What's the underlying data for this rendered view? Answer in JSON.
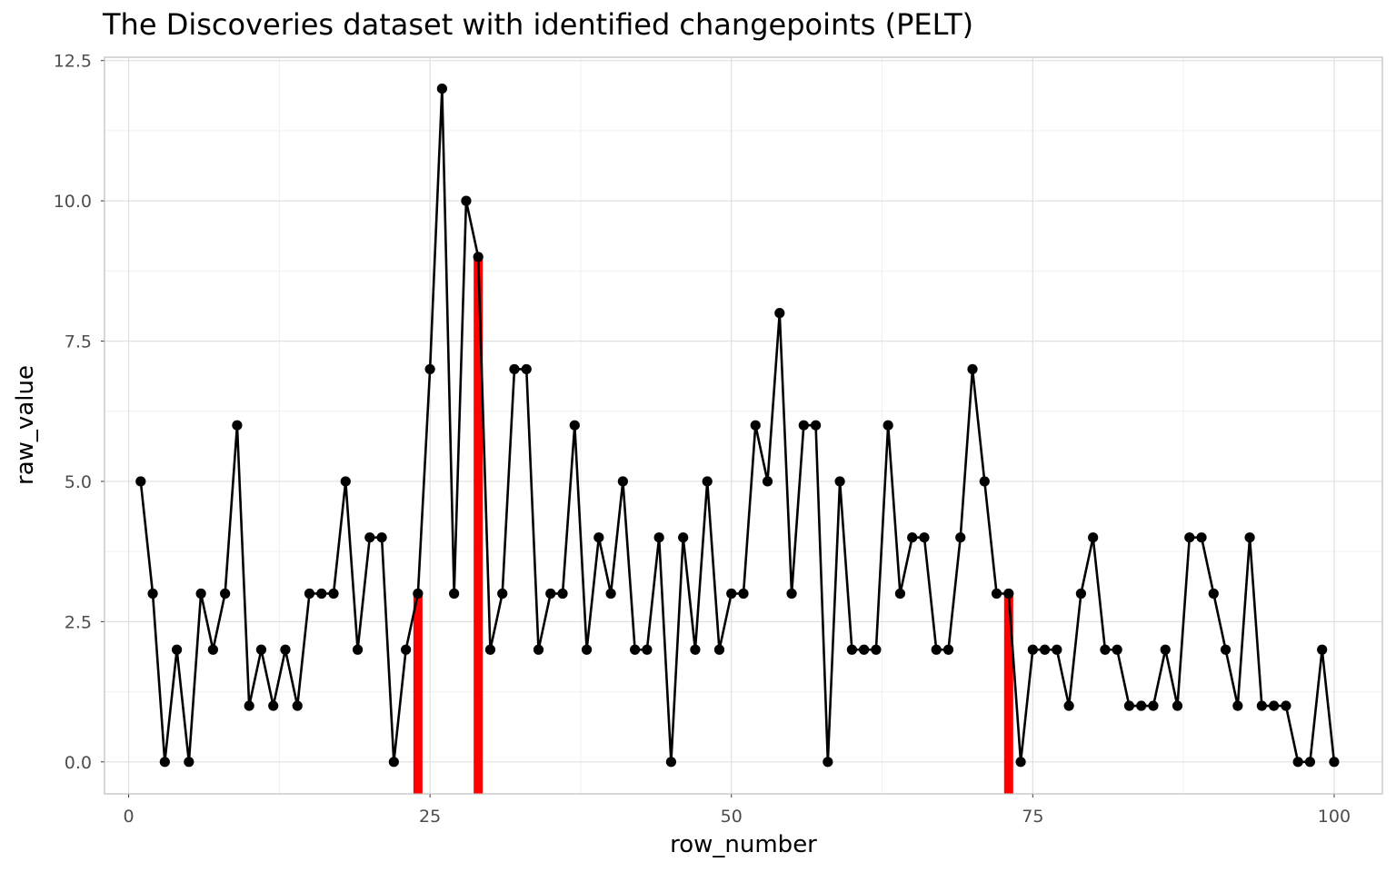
{
  "chart_data": {
    "type": "line",
    "title": "The Discoveries dataset with identified changepoints (PELT)",
    "xlabel": "row_number",
    "ylabel": "raw_value",
    "xlim": [
      -2,
      104
    ],
    "ylim": [
      -0.57,
      12.56
    ],
    "x_ticks": [
      0,
      25,
      50,
      75,
      100
    ],
    "x_tick_labels": [
      "0",
      "25",
      "50",
      "75",
      "100"
    ],
    "y_ticks": [
      0,
      2.5,
      5,
      7.5,
      10,
      12.5
    ],
    "y_tick_labels": [
      "0.0",
      "2.5",
      "5.0",
      "7.5",
      "10.0",
      "12.5"
    ],
    "grid": true,
    "series": [
      {
        "x": [
          1,
          2,
          3,
          4,
          5,
          6,
          7,
          8,
          9,
          10,
          11,
          12,
          13,
          14,
          15,
          16,
          17,
          18,
          19,
          20,
          21,
          22,
          23,
          24,
          25,
          26,
          27,
          28,
          29,
          30,
          31,
          32,
          33,
          34,
          35,
          36,
          37,
          38,
          39,
          40,
          41,
          42,
          43,
          44,
          45,
          46,
          47,
          48,
          49,
          50,
          51,
          52,
          53,
          54,
          55,
          56,
          57,
          58,
          59,
          60,
          61,
          62,
          63,
          64,
          65,
          66,
          67,
          68,
          69,
          70,
          71,
          72,
          73,
          74,
          75,
          76,
          77,
          78,
          79,
          80,
          81,
          82,
          83,
          84,
          85,
          86,
          87,
          88,
          89,
          90,
          91,
          92,
          93,
          94,
          95,
          96,
          97,
          98,
          99,
          100
        ],
        "values": [
          5,
          3,
          0,
          2,
          0,
          3,
          2,
          3,
          6,
          1,
          2,
          1,
          2,
          1,
          3,
          3,
          3,
          5,
          2,
          4,
          4,
          0,
          2,
          3,
          7,
          12,
          3,
          10,
          9,
          2,
          3,
          7,
          7,
          2,
          3,
          3,
          6,
          2,
          4,
          3,
          5,
          2,
          2,
          4,
          0,
          4,
          2,
          5,
          2,
          3,
          3,
          6,
          5,
          8,
          3,
          6,
          6,
          0,
          5,
          2,
          2,
          2,
          6,
          3,
          4,
          4,
          2,
          2,
          4,
          7,
          5,
          3,
          3,
          0,
          2,
          2,
          2,
          1,
          3,
          4,
          2,
          2,
          1,
          1,
          1,
          2,
          1,
          4,
          4,
          3,
          2,
          1,
          4,
          1,
          1,
          1,
          0,
          0,
          2,
          0
        ],
        "color": "#000000"
      }
    ],
    "changepoints": {
      "x": [
        24,
        29,
        73
      ],
      "values": [
        3,
        9,
        3
      ],
      "color": "#ff0000"
    },
    "colors": {
      "panel_border": "#bdbdbd",
      "grid_major": "#e0e0e0",
      "grid_minor": "#f0f0f0"
    }
  }
}
